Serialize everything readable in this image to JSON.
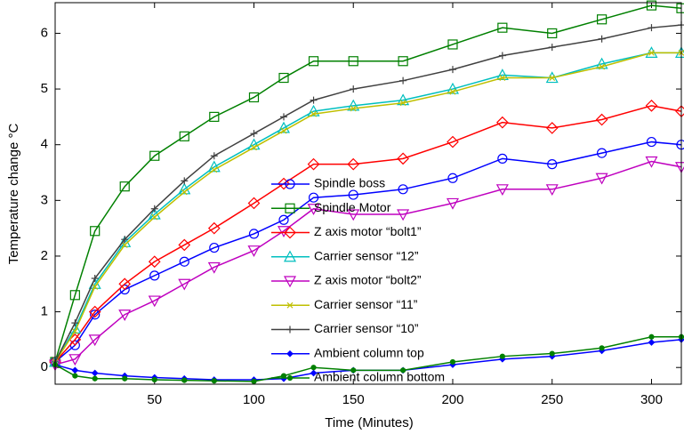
{
  "chart_data": {
    "type": "line",
    "xlabel": "Time (Minutes)",
    "ylabel": "Temperature change °C",
    "x": [
      0,
      10,
      20,
      35,
      50,
      65,
      80,
      100,
      115,
      130,
      150,
      175,
      200,
      225,
      250,
      275,
      300,
      315
    ],
    "xlim": [
      0,
      315
    ],
    "ylim": [
      -0.3,
      6.55
    ],
    "xticks": [
      50,
      100,
      150,
      200,
      250,
      300
    ],
    "yticks": [
      0,
      1,
      2,
      3,
      4,
      5,
      6
    ],
    "legend": "center",
    "series": [
      {
        "name": "Spindle boss",
        "color": "#0000ff",
        "marker": "circle",
        "values": [
          0.1,
          0.4,
          0.95,
          1.4,
          1.65,
          1.9,
          2.15,
          2.4,
          2.65,
          3.05,
          3.1,
          3.2,
          3.4,
          3.75,
          3.65,
          3.85,
          4.05,
          4.0
        ]
      },
      {
        "name": "Spindle Motor",
        "color": "#008000",
        "marker": "square",
        "values": [
          0.1,
          1.3,
          2.45,
          3.25,
          3.8,
          4.15,
          4.5,
          4.85,
          5.2,
          5.5,
          5.5,
          5.5,
          5.8,
          6.1,
          6.0,
          6.25,
          6.5,
          6.45
        ]
      },
      {
        "name": "Z axis motor “bolt1”",
        "color": "#ff0000",
        "marker": "diamond",
        "values": [
          0.1,
          0.5,
          1.0,
          1.5,
          1.9,
          2.2,
          2.5,
          2.95,
          3.3,
          3.65,
          3.65,
          3.75,
          4.05,
          4.4,
          4.3,
          4.45,
          4.7,
          4.6
        ]
      },
      {
        "name": "Carrier sensor “12”",
        "color": "#00bfbf",
        "marker": "triangle-up",
        "values": [
          0.1,
          0.7,
          1.5,
          2.25,
          2.75,
          3.2,
          3.6,
          4.0,
          4.3,
          4.6,
          4.7,
          4.8,
          5.0,
          5.25,
          5.2,
          5.45,
          5.65,
          5.65
        ]
      },
      {
        "name": "Z axis motor “bolt2”",
        "color": "#bf00bf",
        "marker": "triangle-down",
        "values": [
          0.05,
          0.15,
          0.5,
          0.95,
          1.2,
          1.5,
          1.8,
          2.1,
          2.45,
          2.85,
          2.75,
          2.75,
          2.95,
          3.2,
          3.2,
          3.4,
          3.7,
          3.6
        ]
      },
      {
        "name": "Carrier sensor “11”",
        "color": "#bfbf00",
        "marker": "x",
        "values": [
          0.1,
          0.65,
          1.45,
          2.2,
          2.7,
          3.15,
          3.55,
          3.95,
          4.25,
          4.55,
          4.65,
          4.75,
          4.95,
          5.2,
          5.2,
          5.4,
          5.65,
          5.65
        ]
      },
      {
        "name": "Carrier sensor “10”",
        "color": "#404040",
        "marker": "plus",
        "values": [
          0.1,
          0.8,
          1.6,
          2.3,
          2.85,
          3.35,
          3.8,
          4.2,
          4.5,
          4.8,
          5.0,
          5.15,
          5.35,
          5.6,
          5.75,
          5.9,
          6.1,
          6.15
        ]
      },
      {
        "name": "Ambient column top",
        "color": "#0000ff",
        "marker": "filled-diamond",
        "values": [
          0.05,
          -0.05,
          -0.1,
          -0.15,
          -0.18,
          -0.2,
          -0.22,
          -0.22,
          -0.2,
          -0.1,
          -0.05,
          -0.05,
          0.05,
          0.15,
          0.2,
          0.3,
          0.45,
          0.5
        ]
      },
      {
        "name": "Ambient column bottom",
        "color": "#008000",
        "marker": "dot",
        "values": [
          0.05,
          -0.15,
          -0.2,
          -0.2,
          -0.22,
          -0.23,
          -0.24,
          -0.25,
          -0.15,
          0.0,
          -0.05,
          -0.05,
          0.1,
          0.2,
          0.25,
          0.35,
          0.55,
          0.55
        ]
      }
    ]
  }
}
